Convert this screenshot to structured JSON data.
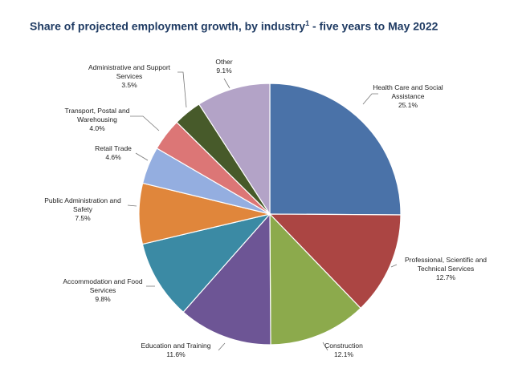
{
  "chart_data": {
    "type": "pie",
    "title": "Share of projected employment growth, by industry",
    "title_superscript": "1",
    "title_suffix": " - five years to May 2022",
    "slices": [
      {
        "name": "Health Care and Social Assistance",
        "value": 25.1,
        "label": "25.1%",
        "color": "#4a72a8"
      },
      {
        "name": "Professional, Scientific and Technical Services",
        "value": 12.7,
        "label": "12.7%",
        "color": "#ab4543"
      },
      {
        "name": "Construction",
        "value": 12.1,
        "label": "12.1%",
        "color": "#8caa4c"
      },
      {
        "name": "Education and Training",
        "value": 11.6,
        "label": "11.6%",
        "color": "#6d5595"
      },
      {
        "name": "Accommodation and Food Services",
        "value": 9.8,
        "label": "9.8%",
        "color": "#3b8aa4"
      },
      {
        "name": "Public Administration and Safety",
        "value": 7.5,
        "label": "7.5%",
        "color": "#e0863b"
      },
      {
        "name": "Retail Trade",
        "value": 4.6,
        "label": "4.6%",
        "color": "#94aee0"
      },
      {
        "name": "Transport, Postal and Warehousing",
        "value": 4.0,
        "label": "4.0%",
        "color": "#dc7676"
      },
      {
        "name": "Administrative and Support Services",
        "value": 3.5,
        "label": "3.5%",
        "color": "#475a2a"
      },
      {
        "name": "Other",
        "value": 9.1,
        "label": "9.1%",
        "color": "#b3a3c7"
      }
    ],
    "start": "12 o'clock, clockwise",
    "legend": "none (leader-line labels)"
  }
}
